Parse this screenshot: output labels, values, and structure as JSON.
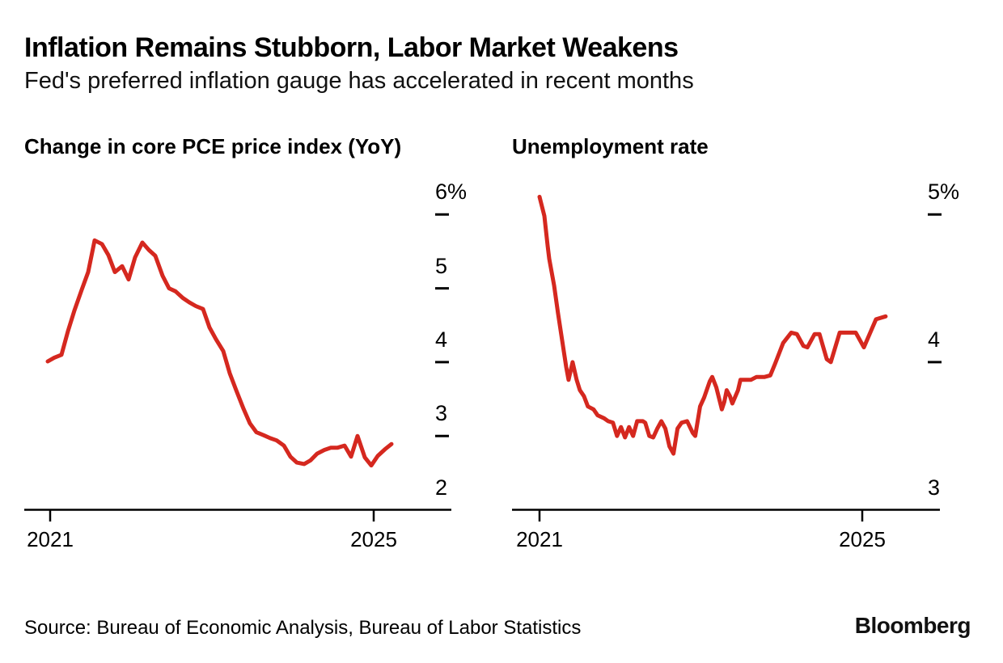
{
  "header": {
    "title": "Inflation Remains Stubborn, Labor Market Weakens",
    "subtitle": "Fed's preferred inflation gauge has accelerated in recent months"
  },
  "footer": {
    "source": "Source: Bureau of Economic Analysis, Bureau of Labor Statistics",
    "logo": "Bloomberg"
  },
  "accent_color": "#d5281f",
  "chart_data": [
    {
      "type": "line",
      "title": "Change in core PCE price index (YoY)",
      "unit": "%",
      "color": "#d5281f",
      "legend": "none",
      "grid": false,
      "xlim": [
        2020.97,
        2025.22
      ],
      "ylim": [
        2,
        6
      ],
      "xticks": [
        {
          "label": "2021",
          "value": 2021
        },
        {
          "label": "2025",
          "value": 2025
        }
      ],
      "yticks": [
        {
          "label": "6%",
          "value": 6,
          "dash": true
        },
        {
          "label": "5",
          "value": 5,
          "dash": true
        },
        {
          "label": "4",
          "value": 4,
          "dash": true
        },
        {
          "label": "3",
          "value": 3,
          "dash": true
        },
        {
          "label": "2",
          "value": 2,
          "dash": false
        }
      ],
      "x": [
        2020.97,
        2021.05,
        2021.14,
        2021.22,
        2021.3,
        2021.39,
        2021.47,
        2021.55,
        2021.64,
        2021.72,
        2021.8,
        2021.89,
        2021.97,
        2022.05,
        2022.14,
        2022.22,
        2022.3,
        2022.39,
        2022.47,
        2022.55,
        2022.64,
        2022.72,
        2022.8,
        2022.89,
        2022.97,
        2023.05,
        2023.14,
        2023.22,
        2023.3,
        2023.39,
        2023.47,
        2023.55,
        2023.64,
        2023.72,
        2023.8,
        2023.89,
        2023.97,
        2024.05,
        2024.14,
        2024.22,
        2024.3,
        2024.39,
        2024.47,
        2024.55,
        2024.64,
        2024.72,
        2024.8,
        2024.89,
        2024.97,
        2025.05,
        2025.14,
        2025.22
      ],
      "values": [
        4.01,
        4.06,
        4.1,
        4.42,
        4.7,
        4.98,
        5.22,
        5.65,
        5.6,
        5.45,
        5.22,
        5.3,
        5.12,
        5.42,
        5.62,
        5.52,
        5.44,
        5.17,
        5.0,
        4.96,
        4.87,
        4.81,
        4.76,
        4.72,
        4.47,
        4.31,
        4.15,
        3.85,
        3.62,
        3.37,
        3.17,
        3.05,
        3.01,
        2.97,
        2.94,
        2.87,
        2.72,
        2.64,
        2.62,
        2.67,
        2.76,
        2.81,
        2.84,
        2.84,
        2.87,
        2.72,
        3.0,
        2.71,
        2.6,
        2.73,
        2.82,
        2.89
      ]
    },
    {
      "type": "line",
      "title": "Unemployment rate",
      "unit": "%",
      "color": "#d5281f",
      "legend": "none",
      "grid": false,
      "xlim": [
        2021.0,
        2025.29
      ],
      "ylim": [
        3,
        5
      ],
      "xticks": [
        {
          "label": "2021",
          "value": 2021
        },
        {
          "label": "2025",
          "value": 2025
        }
      ],
      "yticks": [
        {
          "label": "5%",
          "value": 5,
          "dash": true
        },
        {
          "label": "4",
          "value": 4,
          "dash": true
        },
        {
          "label": "3",
          "value": 3,
          "dash": false
        }
      ],
      "x": [
        2021.0,
        2021.06,
        2021.1,
        2021.12,
        2021.18,
        2021.23,
        2021.28,
        2021.33,
        2021.36,
        2021.41,
        2021.46,
        2021.5,
        2021.55,
        2021.6,
        2021.67,
        2021.72,
        2021.8,
        2021.85,
        2021.91,
        2021.96,
        2022.01,
        2022.06,
        2022.11,
        2022.16,
        2022.21,
        2022.28,
        2022.31,
        2022.36,
        2022.41,
        2022.46,
        2022.51,
        2022.56,
        2022.61,
        2022.66,
        2022.71,
        2022.76,
        2022.83,
        2022.9,
        2022.93,
        2022.99,
        2023.04,
        2023.11,
        2023.14,
        2023.19,
        2023.26,
        2023.29,
        2023.32,
        2023.36,
        2023.39,
        2023.46,
        2023.49,
        2023.62,
        2023.69,
        2023.79,
        2023.86,
        2023.92,
        2024.02,
        2024.12,
        2024.19,
        2024.27,
        2024.32,
        2024.41,
        2024.47,
        2024.56,
        2024.61,
        2024.72,
        2024.81,
        2024.92,
        2025.02,
        2025.17,
        2025.29
      ],
      "values": [
        5.12,
        4.99,
        4.79,
        4.7,
        4.52,
        4.33,
        4.15,
        3.97,
        3.88,
        4.0,
        3.88,
        3.81,
        3.77,
        3.7,
        3.68,
        3.64,
        3.62,
        3.6,
        3.59,
        3.5,
        3.56,
        3.49,
        3.56,
        3.5,
        3.6,
        3.6,
        3.59,
        3.5,
        3.49,
        3.55,
        3.6,
        3.55,
        3.43,
        3.38,
        3.55,
        3.59,
        3.6,
        3.52,
        3.5,
        3.7,
        3.76,
        3.87,
        3.9,
        3.83,
        3.68,
        3.73,
        3.81,
        3.77,
        3.72,
        3.81,
        3.88,
        3.88,
        3.9,
        3.9,
        3.91,
        3.99,
        4.13,
        4.2,
        4.19,
        4.11,
        4.1,
        4.19,
        4.19,
        4.02,
        4.0,
        4.2,
        4.2,
        4.2,
        4.1,
        4.29,
        4.31
      ]
    }
  ]
}
